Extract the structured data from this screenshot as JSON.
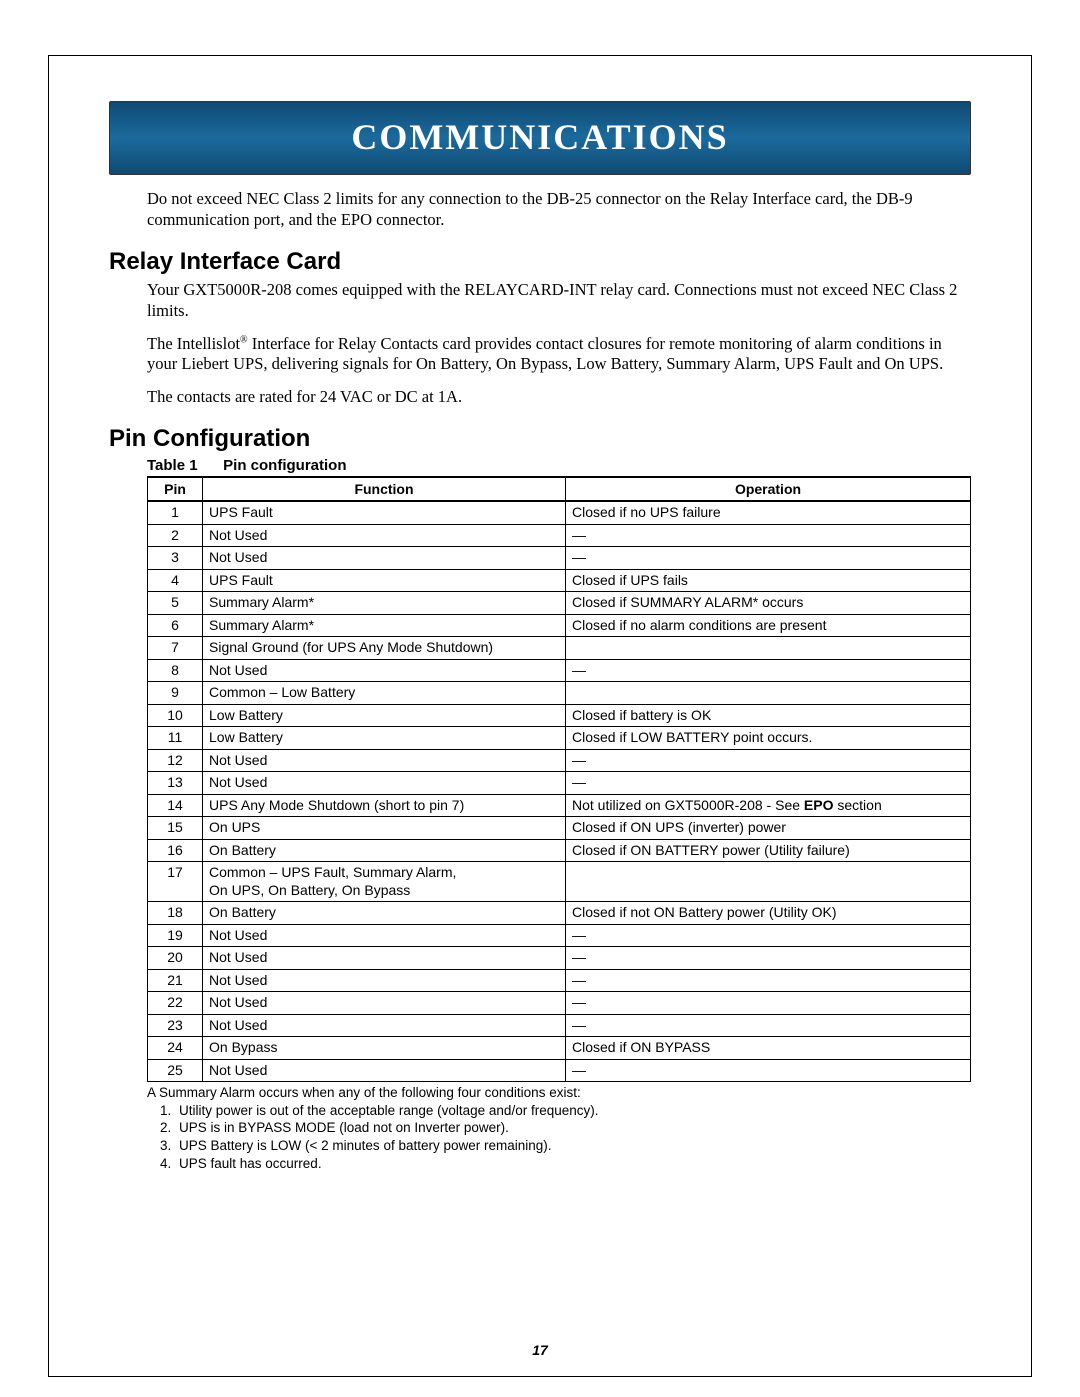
{
  "banner_title": "COMMUNICATIONS",
  "intro_paragraph": "Do not exceed NEC Class 2 limits for any connection to the DB-25 connector on the Relay Interface card, the DB-9 communication port, and the EPO connector.",
  "section_relay_title": "Relay Interface Card",
  "relay_p1": "Your GXT5000R-208 comes equipped with the RELAYCARD-INT relay card. Connections must not exceed NEC Class 2 limits.",
  "relay_p2_pre": "The Intellislot",
  "relay_p2_sup": "®",
  "relay_p2_post": " Interface for Relay Contacts card provides contact closures for remote monitoring of alarm conditions in your Liebert UPS, delivering signals for On Battery, On Bypass, Low Battery, Summary Alarm, UPS Fault and On UPS.",
  "relay_p3": "The contacts are rated for 24 VAC or DC at 1A.",
  "section_pin_title": "Pin Configuration",
  "table_caption_label": "Table 1",
  "table_caption_text": "Pin configuration",
  "table": {
    "headers": [
      "Pin",
      "Function",
      "Operation"
    ],
    "rows": [
      [
        "1",
        "UPS Fault",
        "Closed if no UPS failure"
      ],
      [
        "2",
        "Not Used",
        "—"
      ],
      [
        "3",
        "Not Used",
        "—"
      ],
      [
        "4",
        "UPS Fault",
        "Closed if UPS fails"
      ],
      [
        "5",
        "Summary Alarm*",
        "Closed if SUMMARY ALARM* occurs"
      ],
      [
        "6",
        "Summary Alarm*",
        "Closed if no alarm conditions are present"
      ],
      [
        "7",
        "Signal Ground (for UPS Any Mode Shutdown)",
        ""
      ],
      [
        "8",
        "Not Used",
        "—"
      ],
      [
        "9",
        "Common – Low Battery",
        ""
      ],
      [
        "10",
        "Low Battery",
        "Closed if battery is OK"
      ],
      [
        "11",
        "Low Battery",
        "Closed if LOW BATTERY point occurs."
      ],
      [
        "12",
        "Not Used",
        "—"
      ],
      [
        "13",
        "Not Used",
        "—"
      ],
      [
        "14",
        "UPS Any Mode Shutdown (short to pin 7)",
        "Not utilized on GXT5000R-208 - See EPO section"
      ],
      [
        "15",
        "On UPS",
        "Closed if ON UPS (inverter) power"
      ],
      [
        "16",
        "On Battery",
        "Closed if ON BATTERY power (Utility failure)"
      ],
      [
        "17",
        "Common – UPS Fault, Summary Alarm,\nOn UPS, On Battery, On Bypass",
        ""
      ],
      [
        "18",
        "On Battery",
        "Closed if not ON Battery power (Utility OK)"
      ],
      [
        "19",
        "Not Used",
        "—"
      ],
      [
        "20",
        "Not Used",
        "—"
      ],
      [
        "21",
        "Not Used",
        "—"
      ],
      [
        "22",
        "Not Used",
        "—"
      ],
      [
        "23",
        "Not Used",
        "—"
      ],
      [
        "24",
        "On Bypass",
        "Closed if ON BYPASS"
      ],
      [
        "25",
        "Not Used",
        "—"
      ]
    ]
  },
  "footnote_intro": "A Summary Alarm occurs when any of the following four conditions exist:",
  "footnote_items": [
    "Utility power is out of the acceptable range (voltage and/or frequency).",
    "UPS is in BYPASS MODE (load not on Inverter power).",
    "UPS Battery is LOW (< 2 minutes of battery power remaining).",
    "UPS fault has occurred."
  ],
  "page_number": "17",
  "colors": {
    "banner_grad_top": "#0f4a73",
    "banner_grad_mid": "#1b6a9c",
    "banner_text": "#ffffff",
    "border": "#000000"
  }
}
